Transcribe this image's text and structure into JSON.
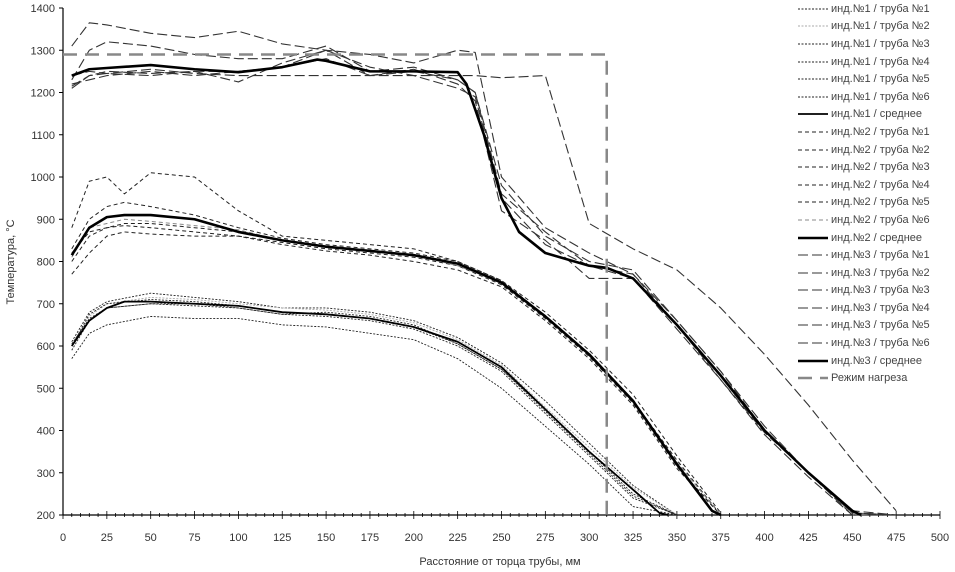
{
  "chart_data": {
    "type": "line",
    "title": "",
    "xlabel": "Расстояние от торца трубы, мм",
    "ylabel": "Температура, °С",
    "xlim": [
      0,
      500
    ],
    "ylim": [
      200,
      1400
    ],
    "xticks": [
      0,
      25,
      50,
      75,
      100,
      125,
      150,
      175,
      200,
      225,
      250,
      275,
      300,
      325,
      350,
      375,
      400,
      425,
      450,
      475,
      500
    ],
    "yticks": [
      200,
      300,
      400,
      500,
      600,
      700,
      800,
      900,
      1000,
      1100,
      1200,
      1300,
      1400
    ],
    "legend_position": "right",
    "series": [
      {
        "name": "инд.№1 / труба №1",
        "x": [
          5,
          15,
          25,
          50,
          75,
          100,
          125,
          150,
          175,
          200,
          225,
          250,
          275,
          300,
          325,
          350
        ],
        "y": [
          610,
          680,
          705,
          725,
          715,
          705,
          690,
          690,
          680,
          660,
          620,
          560,
          470,
          370,
          270,
          200
        ]
      },
      {
        "name": "инд.№1 / труба №2",
        "x": [
          5,
          15,
          25,
          50,
          75,
          100,
          125,
          150,
          175,
          200,
          225,
          250,
          275,
          300,
          325,
          350
        ],
        "y": [
          600,
          670,
          700,
          715,
          710,
          700,
          690,
          685,
          675,
          655,
          615,
          555,
          455,
          360,
          265,
          200
        ]
      },
      {
        "name": "инд.№1 / труба №3",
        "x": [
          5,
          15,
          25,
          50,
          75,
          100,
          125,
          150,
          175,
          200,
          225,
          250,
          275,
          300,
          325,
          350
        ],
        "y": [
          570,
          630,
          650,
          670,
          665,
          665,
          650,
          645,
          630,
          615,
          570,
          500,
          410,
          320,
          220,
          200
        ]
      },
      {
        "name": "инд.№1 / труба №4",
        "x": [
          5,
          15,
          25,
          50,
          75,
          100,
          125,
          150,
          175,
          200,
          225,
          250,
          275,
          300,
          325,
          350
        ],
        "y": [
          605,
          665,
          690,
          700,
          700,
          690,
          675,
          680,
          670,
          650,
          605,
          545,
          450,
          350,
          250,
          200
        ]
      },
      {
        "name": "инд.№1 / труба №5",
        "x": [
          5,
          15,
          25,
          50,
          75,
          100,
          125,
          150,
          175,
          200,
          225,
          250,
          275,
          300,
          325,
          350
        ],
        "y": [
          600,
          675,
          700,
          710,
          705,
          695,
          680,
          675,
          665,
          645,
          605,
          545,
          445,
          345,
          245,
          200
        ]
      },
      {
        "name": "инд.№1 / труба №6",
        "x": [
          5,
          15,
          25,
          50,
          75,
          100,
          125,
          150,
          175,
          200,
          225,
          250,
          275,
          300,
          325,
          350
        ],
        "y": [
          590,
          660,
          690,
          700,
          695,
          690,
          675,
          670,
          660,
          640,
          600,
          540,
          440,
          340,
          240,
          200
        ]
      },
      {
        "name": "инд.№1 / среднее",
        "x": [
          5,
          15,
          25,
          35,
          50,
          75,
          100,
          125,
          150,
          175,
          200,
          225,
          250,
          275,
          300,
          325,
          340,
          345
        ],
        "y": [
          600,
          660,
          690,
          705,
          705,
          700,
          695,
          680,
          675,
          665,
          645,
          610,
          550,
          450,
          350,
          260,
          205,
          200
        ]
      },
      {
        "name": "инд.№2 / труба №1",
        "x": [
          5,
          15,
          25,
          35,
          50,
          75,
          100,
          125,
          150,
          175,
          200,
          225,
          250,
          275,
          300,
          325,
          350,
          375
        ],
        "y": [
          880,
          990,
          1000,
          960,
          1010,
          1000,
          920,
          860,
          850,
          840,
          830,
          800,
          755,
          670,
          580,
          470,
          330,
          200
        ]
      },
      {
        "name": "инд.№2 / труба №2",
        "x": [
          5,
          15,
          25,
          35,
          50,
          75,
          100,
          125,
          150,
          175,
          200,
          225,
          250,
          275,
          300,
          325,
          350,
          375
        ],
        "y": [
          820,
          870,
          880,
          890,
          890,
          880,
          870,
          850,
          835,
          825,
          815,
          795,
          750,
          670,
          580,
          470,
          325,
          200
        ]
      },
      {
        "name": "инд.№2 / труба №3",
        "x": [
          5,
          15,
          25,
          35,
          50,
          75,
          100,
          125,
          150,
          175,
          200,
          225,
          250,
          275,
          300,
          325,
          350,
          375
        ],
        "y": [
          770,
          820,
          860,
          870,
          865,
          860,
          860,
          840,
          825,
          815,
          800,
          780,
          740,
          660,
          570,
          460,
          310,
          200
        ]
      },
      {
        "name": "инд.№2 / труба №4",
        "x": [
          5,
          15,
          25,
          35,
          50,
          75,
          100,
          125,
          150,
          175,
          200,
          225,
          250,
          275,
          300,
          325,
          350,
          375
        ],
        "y": [
          800,
          860,
          880,
          885,
          880,
          870,
          860,
          845,
          830,
          820,
          810,
          790,
          745,
          665,
          575,
          465,
          315,
          200
        ]
      },
      {
        "name": "инд.№2 / труба №5",
        "x": [
          5,
          15,
          25,
          35,
          50,
          75,
          100,
          125,
          150,
          175,
          200,
          225,
          250,
          275,
          300,
          325,
          350,
          375
        ],
        "y": [
          830,
          900,
          930,
          940,
          930,
          910,
          880,
          855,
          840,
          830,
          820,
          800,
          755,
          680,
          590,
          485,
          340,
          205
        ]
      },
      {
        "name": "инд.№2 / труба №6",
        "x": [
          5,
          15,
          25,
          35,
          50,
          75,
          100,
          125,
          150,
          175,
          200,
          225,
          250,
          275,
          300,
          325,
          350,
          375
        ],
        "y": [
          810,
          880,
          890,
          900,
          895,
          885,
          875,
          850,
          835,
          825,
          815,
          790,
          750,
          670,
          580,
          470,
          325,
          200
        ]
      },
      {
        "name": "инд.№2 / среднее",
        "x": [
          5,
          15,
          25,
          35,
          50,
          75,
          100,
          125,
          150,
          175,
          200,
          225,
          250,
          275,
          300,
          325,
          350,
          370,
          375
        ],
        "y": [
          815,
          880,
          905,
          910,
          910,
          900,
          870,
          850,
          835,
          825,
          815,
          795,
          750,
          670,
          580,
          470,
          320,
          210,
          200
        ]
      },
      {
        "name": "инд.№3 / труба №1",
        "x": [
          5,
          15,
          25,
          50,
          75,
          100,
          125,
          150,
          175,
          200,
          225,
          235,
          250,
          275,
          300,
          325,
          350,
          375,
          400,
          425,
          450,
          475
        ],
        "y": [
          1310,
          1365,
          1360,
          1340,
          1330,
          1345,
          1315,
          1300,
          1290,
          1270,
          1300,
          1295,
          1000,
          880,
          820,
          770,
          660,
          540,
          410,
          300,
          210,
          200
        ]
      },
      {
        "name": "инд.№3 / труба №2",
        "x": [
          5,
          15,
          25,
          50,
          75,
          100,
          125,
          150,
          175,
          200,
          225,
          235,
          250,
          275,
          300,
          325,
          350,
          375,
          400,
          425,
          450,
          475
        ],
        "y": [
          1240,
          1250,
          1245,
          1255,
          1245,
          1240,
          1240,
          1240,
          1240,
          1240,
          1240,
          1240,
          1235,
          1240,
          890,
          830,
          780,
          690,
          580,
          460,
          330,
          210
        ]
      },
      {
        "name": "инд.№3 / труба №3",
        "x": [
          5,
          15,
          25,
          50,
          75,
          100,
          125,
          150,
          175,
          200,
          225,
          235,
          250,
          275,
          300,
          325,
          350,
          375,
          400,
          425,
          450,
          475
        ],
        "y": [
          1220,
          1230,
          1240,
          1250,
          1240,
          1250,
          1260,
          1300,
          1240,
          1255,
          1220,
          1180,
          920,
          850,
          760,
          760,
          640,
          520,
          390,
          290,
          200,
          200
        ]
      },
      {
        "name": "инд.№3 / труба №4",
        "x": [
          5,
          15,
          25,
          50,
          75,
          100,
          125,
          150,
          175,
          200,
          225,
          235,
          250,
          275,
          300,
          325,
          350,
          375,
          400,
          425,
          450,
          475
        ],
        "y": [
          1210,
          1240,
          1250,
          1245,
          1250,
          1225,
          1270,
          1300,
          1260,
          1240,
          1210,
          1190,
          950,
          840,
          790,
          760,
          650,
          520,
          395,
          300,
          205,
          200
        ]
      },
      {
        "name": "инд.№3 / труба №5",
        "x": [
          5,
          15,
          25,
          50,
          75,
          100,
          125,
          150,
          175,
          200,
          225,
          235,
          250,
          275,
          300,
          325,
          350,
          375,
          400,
          425,
          450,
          475
        ],
        "y": [
          1230,
          1300,
          1320,
          1310,
          1290,
          1280,
          1280,
          1310,
          1250,
          1260,
          1230,
          1200,
          980,
          860,
          800,
          780,
          660,
          540,
          400,
          300,
          205,
          200
        ]
      },
      {
        "name": "инд.№3 / труба №6",
        "x": [
          5,
          15,
          25,
          50,
          75,
          100,
          125,
          150,
          175,
          200,
          225,
          235,
          250,
          275,
          300,
          325,
          350,
          375,
          400,
          425,
          450,
          475
        ],
        "y": [
          1215,
          1240,
          1245,
          1240,
          1250,
          1250,
          1260,
          1280,
          1240,
          1250,
          1230,
          1200,
          960,
          870,
          790,
          770,
          650,
          530,
          400,
          300,
          200,
          200
        ]
      },
      {
        "name": "инд.№3 / среднее",
        "x": [
          5,
          15,
          25,
          50,
          75,
          100,
          125,
          145,
          150,
          175,
          200,
          225,
          230,
          240,
          250,
          260,
          275,
          300,
          310,
          325,
          350,
          375,
          400,
          425,
          450,
          455
        ],
        "y": [
          1240,
          1255,
          1258,
          1265,
          1255,
          1248,
          1260,
          1278,
          1275,
          1250,
          1250,
          1248,
          1220,
          1100,
          950,
          870,
          820,
          790,
          785,
          760,
          650,
          530,
          400,
          300,
          210,
          200
        ]
      },
      {
        "name": "Режим нагреза",
        "x": [
          0,
          310,
          310
        ],
        "y": [
          1290,
          1290,
          200
        ]
      }
    ]
  }
}
